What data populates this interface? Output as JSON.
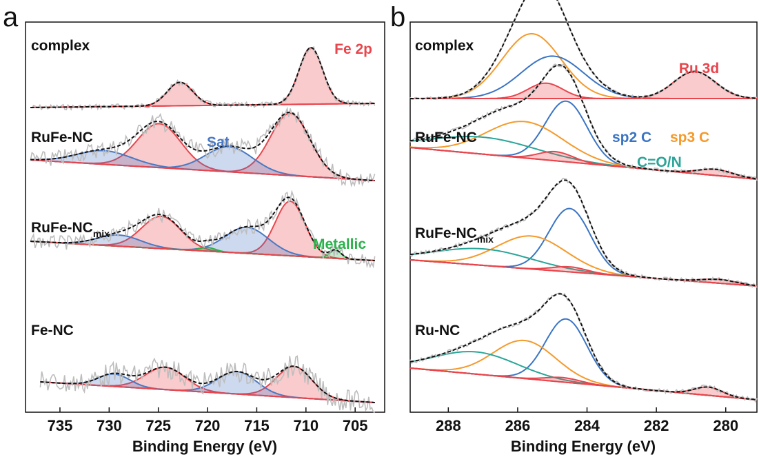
{
  "panels": [
    {
      "label": "a",
      "xlabel": "Binding Energy (eV)",
      "region_label": "Fe 2p",
      "ticks": [
        "735",
        "730",
        "725",
        "720",
        "715",
        "710",
        "705"
      ],
      "samples": [
        {
          "name": "complex",
          "sub": ""
        },
        {
          "name": "RuFe-NC",
          "sub": ""
        },
        {
          "name": "RuFe-NC",
          "sub": "mix"
        },
        {
          "name": "Fe-NC",
          "sub": ""
        }
      ],
      "annotations": [
        {
          "text": "Fe 2p",
          "color": "#e8454c"
        },
        {
          "text": "Sat.",
          "color": "#4a78c2"
        },
        {
          "text": "Metallic",
          "color": "#2ab24a"
        }
      ]
    },
    {
      "label": "b",
      "xlabel": "Binding Energy (eV)",
      "region_label": "Ru 3d",
      "ticks": [
        "288",
        "286",
        "284",
        "282",
        "280"
      ],
      "samples": [
        {
          "name": "complex",
          "sub": ""
        },
        {
          "name": "RuFe-NC",
          "sub": ""
        },
        {
          "name": "RuFe-NC",
          "sub": "mix"
        },
        {
          "name": "Ru-NC",
          "sub": ""
        }
      ],
      "annotations": [
        {
          "text": "Ru 3d",
          "color": "#e8454c"
        },
        {
          "text": "sp2 C",
          "color": "#3a74c4"
        },
        {
          "text": "sp3 C",
          "color": "#f59a2a"
        },
        {
          "text": "C=O/N",
          "color": "#2aa598"
        }
      ]
    }
  ],
  "chart_data": [
    {
      "type": "line",
      "panel": "a",
      "title": "",
      "xlabel": "Binding Energy (eV)",
      "ylabel": "",
      "xlim": [
        738.5,
        702
      ],
      "x_reversed": true,
      "grid": false,
      "colors": {
        "fe_component": "#e8454c",
        "satellite": "#4a78c2",
        "metallic": "#2ab24a",
        "fit_envelope": "#111111",
        "raw_data": "#bdbdbd"
      },
      "spectra": [
        {
          "sample": "complex",
          "range": [
            738,
            703
          ],
          "peaks": [
            {
              "component": "Fe 2p",
              "center": 709.5,
              "height": 0.82,
              "width": 1.2
            },
            {
              "component": "Fe 2p",
              "center": 722.8,
              "height": 0.34,
              "width": 1.3
            }
          ]
        },
        {
          "sample": "RuFe-NC",
          "range": [
            738,
            703
          ],
          "peaks": [
            {
              "component": "Fe 2p",
              "center": 711.6,
              "height": 0.82,
              "width": 2.0
            },
            {
              "component": "Fe 2p",
              "center": 724.9,
              "height": 0.58,
              "width": 2.2
            },
            {
              "component": "Sat.",
              "center": 717.8,
              "height": 0.33,
              "width": 2.4
            },
            {
              "component": "Sat.",
              "center": 730.5,
              "height": 0.18,
              "width": 2.8
            }
          ]
        },
        {
          "sample": "RuFe-NCmix",
          "range": [
            738,
            703
          ],
          "peaks": [
            {
              "component": "Fe 2p",
              "center": 711.6,
              "height": 0.88,
              "width": 1.5
            },
            {
              "component": "Fe 2p",
              "center": 724.7,
              "height": 0.52,
              "width": 2.0
            },
            {
              "component": "Sat.",
              "center": 716.0,
              "height": 0.42,
              "width": 2.2
            },
            {
              "component": "Sat.",
              "center": 729.0,
              "height": 0.18,
              "width": 2.2
            },
            {
              "component": "Metallic",
              "center": 707.0,
              "height": 0.13,
              "width": 0.6
            },
            {
              "component": "Metallic",
              "center": 720.0,
              "height": 0.06,
              "width": 0.8
            }
          ]
        },
        {
          "sample": "Fe-NC",
          "range": [
            737,
            703
          ],
          "peaks": [
            {
              "component": "Fe 2p",
              "center": 711.2,
              "height": 0.5,
              "width": 1.8
            },
            {
              "component": "Fe 2p",
              "center": 724.3,
              "height": 0.36,
              "width": 2.0
            },
            {
              "component": "Sat.",
              "center": 717.0,
              "height": 0.36,
              "width": 2.0
            },
            {
              "component": "Sat.",
              "center": 729.5,
              "height": 0.2,
              "width": 1.6
            }
          ]
        }
      ]
    },
    {
      "type": "line",
      "panel": "b",
      "title": "",
      "xlabel": "Binding Energy (eV)",
      "ylabel": "",
      "xlim": [
        289.1,
        279.1
      ],
      "x_reversed": true,
      "grid": false,
      "colors": {
        "sp2_c": "#3a74c4",
        "sp3_c": "#f59a2a",
        "c_o_n": "#2aa598",
        "ru_3d": "#e8454c",
        "fit_envelope": "#111111",
        "raw_data": "#bdbdbd"
      },
      "spectra": [
        {
          "sample": "complex",
          "range": [
            289.1,
            279.1
          ],
          "peaks": [
            {
              "component": "sp3 C",
              "center": 285.6,
              "height": 0.84,
              "width": 0.85
            },
            {
              "component": "sp2 C",
              "center": 285.0,
              "height": 0.55,
              "width": 0.9
            },
            {
              "component": "Ru 3d",
              "center": 285.2,
              "height": 0.2,
              "width": 0.5
            },
            {
              "component": "Ru 3d",
              "center": 280.9,
              "height": 0.35,
              "width": 0.6
            }
          ]
        },
        {
          "sample": "RuFe-NC",
          "range": [
            289.1,
            279.1
          ],
          "peaks": [
            {
              "component": "sp2 C",
              "center": 284.6,
              "height": 1.0,
              "width": 0.6
            },
            {
              "component": "sp3 C",
              "center": 285.8,
              "height": 0.6,
              "width": 1.1
            },
            {
              "component": "C=O/N",
              "center": 287.0,
              "height": 0.28,
              "width": 1.5
            },
            {
              "component": "Ru 3d",
              "center": 284.9,
              "height": 0.15,
              "width": 0.5
            },
            {
              "component": "Ru 3d",
              "center": 280.3,
              "height": 0.1,
              "width": 0.5
            }
          ]
        },
        {
          "sample": "RuFe-NCmix",
          "range": [
            289.1,
            279.1
          ],
          "peaks": [
            {
              "component": "sp2 C",
              "center": 284.5,
              "height": 1.0,
              "width": 0.6
            },
            {
              "component": "sp3 C",
              "center": 285.6,
              "height": 0.52,
              "width": 1.0
            },
            {
              "component": "C=O/N",
              "center": 287.0,
              "height": 0.26,
              "width": 1.4
            },
            {
              "component": "Ru 3d",
              "center": 284.5,
              "height": 0.08,
              "width": 0.5
            },
            {
              "component": "Ru 3d",
              "center": 280.2,
              "height": 0.06,
              "width": 0.5
            }
          ]
        },
        {
          "sample": "Ru-NC",
          "range": [
            289.1,
            279.1
          ],
          "peaks": [
            {
              "component": "sp2 C",
              "center": 284.6,
              "height": 1.0,
              "width": 0.6
            },
            {
              "component": "sp3 C",
              "center": 285.8,
              "height": 0.6,
              "width": 0.9
            },
            {
              "component": "C=O/N",
              "center": 287.2,
              "height": 0.35,
              "width": 1.2
            },
            {
              "component": "Ru 3d",
              "center": 284.7,
              "height": 0.07,
              "width": 0.5
            },
            {
              "component": "Ru 3d",
              "center": 280.5,
              "height": 0.13,
              "width": 0.4
            }
          ]
        }
      ]
    }
  ]
}
